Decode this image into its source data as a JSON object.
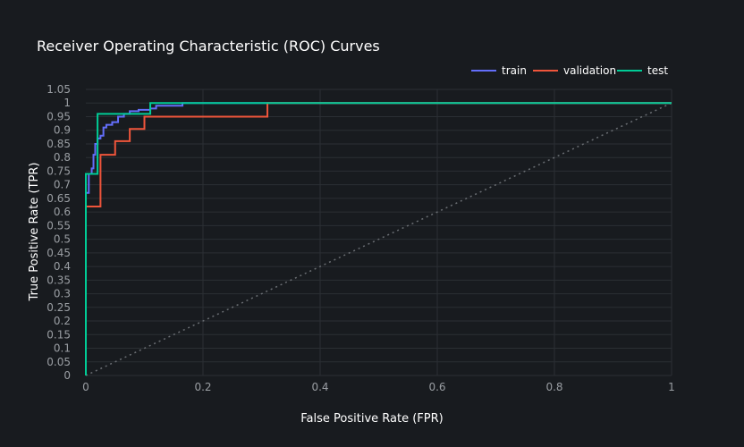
{
  "chart_data": {
    "type": "line",
    "title": "Receiver Operating Characteristic (ROC) Curves",
    "xlabel": "False Positive Rate (FPR)",
    "ylabel": "True Positive Rate (TPR)",
    "xlim": [
      0,
      1
    ],
    "ylim": [
      0,
      1.05
    ],
    "x_ticks": [
      0,
      0.2,
      0.4,
      0.6,
      0.8,
      1
    ],
    "x_tick_labels": [
      "0",
      "0.2",
      "0.4",
      "0.6",
      "0.8",
      "1"
    ],
    "y_ticks": [
      0,
      0.05,
      0.1,
      0.15,
      0.2,
      0.25,
      0.3,
      0.35,
      0.4,
      0.45,
      0.5,
      0.55,
      0.6,
      0.65,
      0.7,
      0.75,
      0.8,
      0.85,
      0.9,
      0.95,
      1,
      1.05
    ],
    "y_tick_labels": [
      "0",
      "0.05",
      "0.1",
      "0.15",
      "0.2",
      "0.25",
      "0.3",
      "0.35",
      "0.4",
      "0.45",
      "0.5",
      "0.55",
      "0.6",
      "0.65",
      "0.7",
      "0.75",
      "0.8",
      "0.85",
      "0.9",
      "0.95",
      "1",
      "1.05"
    ],
    "grid": true,
    "legend_position": "top-right",
    "series": [
      {
        "name": "train",
        "color": "#636efa",
        "x": [
          0,
          0,
          0.005,
          0.005,
          0.01,
          0.01,
          0.013,
          0.013,
          0.016,
          0.016,
          0.02,
          0.02,
          0.025,
          0.025,
          0.03,
          0.03,
          0.035,
          0.035,
          0.045,
          0.045,
          0.055,
          0.055,
          0.065,
          0.065,
          0.075,
          0.075,
          0.09,
          0.09,
          0.11,
          0.11,
          0.12,
          0.12,
          0.165,
          0.165,
          1
        ],
        "y": [
          0,
          0.67,
          0.67,
          0.74,
          0.74,
          0.76,
          0.76,
          0.81,
          0.81,
          0.85,
          0.85,
          0.87,
          0.87,
          0.88,
          0.88,
          0.91,
          0.91,
          0.92,
          0.92,
          0.93,
          0.93,
          0.95,
          0.95,
          0.96,
          0.96,
          0.97,
          0.97,
          0.975,
          0.975,
          0.98,
          0.98,
          0.99,
          0.99,
          1,
          1
        ]
      },
      {
        "name": "validation",
        "color": "#ef553b",
        "x": [
          0,
          0,
          0.025,
          0.025,
          0.05,
          0.05,
          0.075,
          0.075,
          0.1,
          0.1,
          0.31,
          0.31,
          1
        ],
        "y": [
          0,
          0.62,
          0.62,
          0.81,
          0.81,
          0.86,
          0.86,
          0.905,
          0.905,
          0.95,
          0.95,
          1,
          1
        ]
      },
      {
        "name": "test",
        "color": "#00cc96",
        "x": [
          0,
          0,
          0.02,
          0.02,
          0.11,
          0.11,
          1
        ],
        "y": [
          0,
          0.74,
          0.74,
          0.96,
          0.96,
          1,
          1
        ]
      }
    ],
    "reference_line": {
      "x": [
        0,
        1
      ],
      "y": [
        0,
        1
      ],
      "color": "#6b6f74"
    }
  }
}
